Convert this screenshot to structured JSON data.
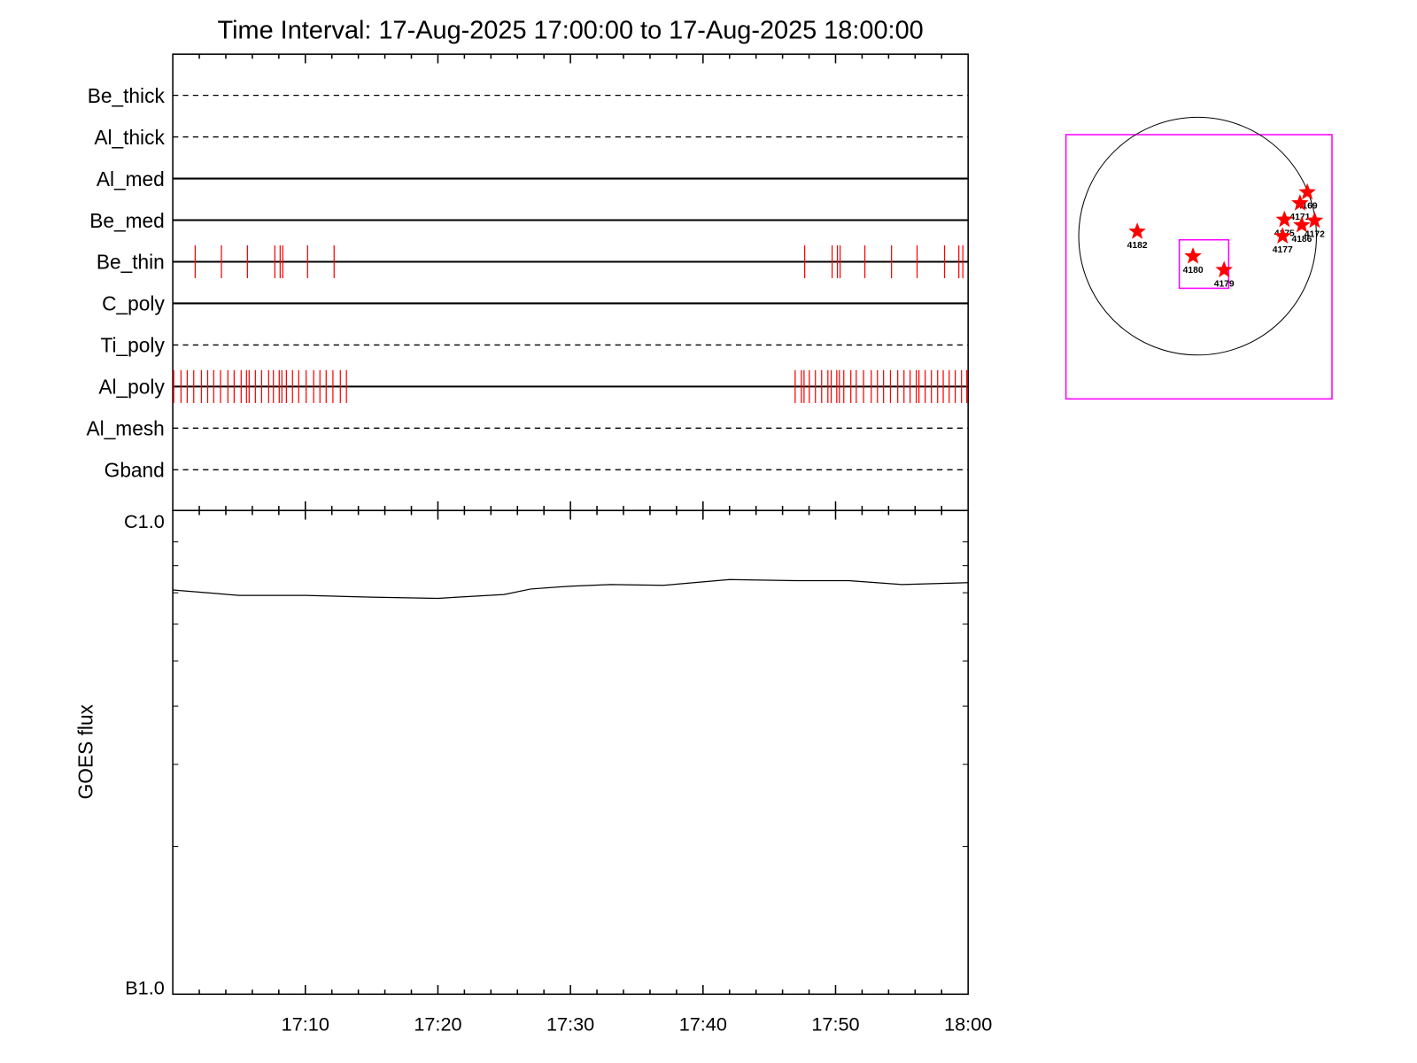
{
  "title": "Time Interval: 17-Aug-2025 17:00:00 to 17-Aug-2025 18:00:00",
  "chart_data": [
    {
      "type": "event-raster",
      "x_unit": "minutes after 17:00",
      "xlim": [
        0,
        60
      ],
      "x_tick_labels": [
        "17:10",
        "17:20",
        "17:30",
        "17:40",
        "17:50",
        "18:00"
      ],
      "channels": [
        {
          "name": "Be_thick",
          "line": "dashed",
          "events": []
        },
        {
          "name": "Al_thick",
          "line": "dashed",
          "events": []
        },
        {
          "name": "Al_med",
          "line": "solid",
          "events": []
        },
        {
          "name": "Be_med",
          "line": "solid",
          "events": []
        },
        {
          "name": "Be_thin",
          "line": "solid",
          "events": [
            1.69,
            3.67,
            5.63,
            7.7,
            8.1,
            8.3,
            10.17,
            12.17,
            47.67,
            49.74,
            50.14,
            50.34,
            52.21,
            54.22,
            56.15,
            58.22,
            59.3,
            59.6
          ]
        },
        {
          "name": "C_poly",
          "line": "solid",
          "events": []
        },
        {
          "name": "Ti_poly",
          "line": "dashed",
          "events": []
        },
        {
          "name": "Al_poly",
          "line": "solid",
          "events": [
            0.07,
            0.62,
            1.09,
            1.58,
            2.16,
            2.63,
            3.09,
            3.6,
            4.16,
            4.63,
            5.16,
            5.56,
            5.76,
            6.23,
            6.7,
            7.23,
            7.59,
            8.03,
            8.23,
            8.57,
            9.03,
            9.5,
            10.06,
            10.63,
            11.1,
            11.57,
            12.08,
            12.64,
            13.1,
            46.95,
            47.42,
            47.62,
            48.02,
            48.48,
            48.95,
            49.42,
            49.67,
            50.09,
            50.29,
            50.62,
            51.15,
            51.56,
            52.11,
            52.69,
            53.16,
            53.62,
            54.14,
            54.69,
            55.16,
            55.62,
            56.09,
            56.29,
            56.76,
            57.23,
            57.7,
            58.12,
            58.57,
            59.03,
            59.5,
            59.9
          ]
        },
        {
          "name": "Al_mesh",
          "line": "dashed",
          "events": []
        },
        {
          "name": "Gband",
          "line": "dashed",
          "events": []
        }
      ],
      "event_color": "#ff0000"
    },
    {
      "type": "line",
      "ylabel": "GOES flux",
      "yscale": "log",
      "ylim": [
        1e-07,
        1e-06
      ],
      "y_tick_labels": [
        "C1.0",
        "B1.0"
      ],
      "x_tick_labels": [
        "17:10",
        "17:20",
        "17:30",
        "17:40",
        "17:50",
        "18:00"
      ],
      "x": [
        0,
        5,
        10,
        15,
        20,
        25,
        27,
        30,
        33,
        37,
        42,
        47,
        51,
        55,
        60
      ],
      "y": [
        7.1e-07,
        6.91e-07,
        6.91e-07,
        6.85e-07,
        6.81e-07,
        6.94e-07,
        7.13e-07,
        7.23e-07,
        7.29e-07,
        7.26e-07,
        7.47e-07,
        7.43e-07,
        7.43e-07,
        7.29e-07,
        7.36e-07
      ],
      "color": "#000000"
    }
  ],
  "sun_map": {
    "frame_color": "#ff00ff",
    "star_color": "#ff0000",
    "regions": [
      "4182",
      "4180",
      "4179",
      "4169",
      "4171",
      "4175",
      "4186",
      "4172",
      "4177"
    ]
  }
}
